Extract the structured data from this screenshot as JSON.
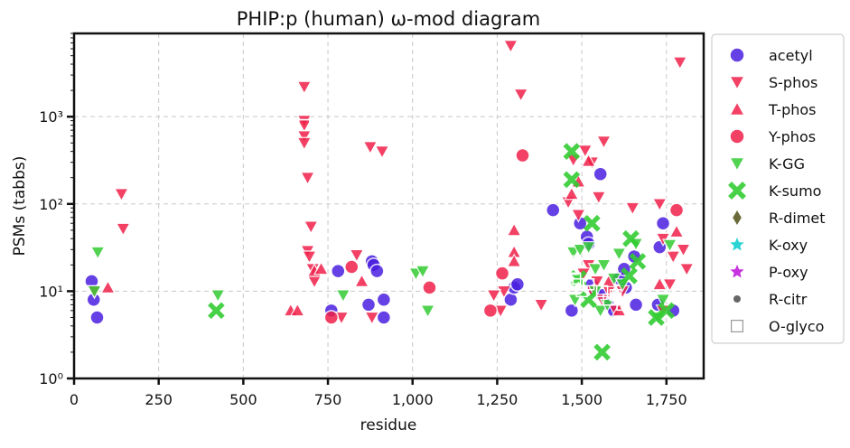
{
  "chart_data": {
    "type": "scatter",
    "title": "PHIP:p (human) ω-mod diagram",
    "xlabel": "residue",
    "ylabel": "PSMs (tabbs)",
    "xlim": [
      0,
      1860
    ],
    "ylim": [
      1,
      9000
    ],
    "y_scale": "log",
    "x_ticks": [
      0,
      250,
      500,
      750,
      1000,
      1250,
      1500,
      1750
    ],
    "x_tick_labels": [
      "0",
      "250",
      "500",
      "750",
      "1,000",
      "1,250",
      "1,500",
      "1,750"
    ],
    "y_ticks": [
      1,
      10,
      100,
      1000
    ],
    "y_tick_labels": [
      "10⁰",
      "10¹",
      "10²",
      "10³"
    ],
    "grid": true,
    "legend_position": "outside-right",
    "series": [
      {
        "name": "acetyl",
        "marker": "circle",
        "color": "#4b1fe0",
        "points": [
          [
            52,
            13
          ],
          [
            58,
            8
          ],
          [
            68,
            5
          ],
          [
            780,
            17
          ],
          [
            760,
            6
          ],
          [
            870,
            7
          ],
          [
            880,
            22
          ],
          [
            885,
            20
          ],
          [
            895,
            17
          ],
          [
            915,
            8
          ],
          [
            915,
            5
          ],
          [
            1290,
            8
          ],
          [
            1300,
            11
          ],
          [
            1310,
            12
          ],
          [
            1415,
            85
          ],
          [
            1470,
            6
          ],
          [
            1495,
            60
          ],
          [
            1515,
            42
          ],
          [
            1520,
            35
          ],
          [
            1530,
            12
          ],
          [
            1540,
            10
          ],
          [
            1555,
            220
          ],
          [
            1560,
            9
          ],
          [
            1580,
            7
          ],
          [
            1595,
            6
          ],
          [
            1610,
            14
          ],
          [
            1625,
            18
          ],
          [
            1630,
            11
          ],
          [
            1655,
            25
          ],
          [
            1660,
            7
          ],
          [
            1740,
            60
          ],
          [
            1730,
            32
          ],
          [
            1725,
            7
          ],
          [
            1770,
            6
          ]
        ]
      },
      {
        "name": "S-phos",
        "marker": "triangle-down",
        "color": "#f0214a",
        "points": [
          [
            140,
            130
          ],
          [
            145,
            52
          ],
          [
            60,
            10
          ],
          [
            680,
            2200
          ],
          [
            690,
            200
          ],
          [
            700,
            55
          ],
          [
            690,
            29
          ],
          [
            695,
            25
          ],
          [
            705,
            18
          ],
          [
            710,
            13
          ],
          [
            680,
            900
          ],
          [
            680,
            800
          ],
          [
            680,
            600
          ],
          [
            680,
            500
          ],
          [
            790,
            5
          ],
          [
            835,
            26
          ],
          [
            875,
            450
          ],
          [
            910,
            400
          ],
          [
            880,
            5
          ],
          [
            1290,
            6500
          ],
          [
            1320,
            1800
          ],
          [
            1270,
            10
          ],
          [
            1260,
            6
          ],
          [
            1240,
            9
          ],
          [
            1380,
            7
          ],
          [
            1460,
            105
          ],
          [
            1475,
            320
          ],
          [
            1490,
            75
          ],
          [
            1510,
            410
          ],
          [
            1530,
            300
          ],
          [
            1550,
            120
          ],
          [
            1565,
            520
          ],
          [
            1520,
            20
          ],
          [
            1505,
            16
          ],
          [
            1530,
            10
          ],
          [
            1545,
            13
          ],
          [
            1560,
            8
          ],
          [
            1580,
            10
          ],
          [
            1600,
            6
          ],
          [
            1620,
            10
          ],
          [
            1650,
            90
          ],
          [
            1730,
            100
          ],
          [
            1740,
            40
          ],
          [
            1790,
            4200
          ],
          [
            1800,
            30
          ],
          [
            1810,
            18
          ],
          [
            1770,
            25
          ],
          [
            1760,
            12
          ],
          [
            1740,
            6
          ]
        ]
      },
      {
        "name": "T-phos",
        "marker": "triangle-up",
        "color": "#f0214a",
        "points": [
          [
            100,
            11
          ],
          [
            640,
            6
          ],
          [
            660,
            6
          ],
          [
            710,
            17
          ],
          [
            730,
            18
          ],
          [
            850,
            13
          ],
          [
            1300,
            50
          ],
          [
            1300,
            28
          ],
          [
            1300,
            22
          ],
          [
            1470,
            130
          ],
          [
            1490,
            180
          ],
          [
            1520,
            310
          ],
          [
            1580,
            13
          ],
          [
            1610,
            6
          ],
          [
            1730,
            12
          ],
          [
            1780,
            48
          ]
        ]
      },
      {
        "name": "Y-phos",
        "marker": "circle",
        "color": "#f0214a",
        "points": [
          [
            820,
            19
          ],
          [
            760,
            5
          ],
          [
            1050,
            11
          ],
          [
            1230,
            6
          ],
          [
            1265,
            16
          ],
          [
            1325,
            360
          ],
          [
            1780,
            85
          ]
        ]
      },
      {
        "name": "K-GG",
        "marker": "triangle-down",
        "color": "#33cc33",
        "points": [
          [
            60,
            10
          ],
          [
            70,
            28
          ],
          [
            425,
            9
          ],
          [
            795,
            9
          ],
          [
            1010,
            16
          ],
          [
            1030,
            17
          ],
          [
            1045,
            6
          ],
          [
            1475,
            28
          ],
          [
            1480,
            8
          ],
          [
            1495,
            30
          ],
          [
            1520,
            32
          ],
          [
            1540,
            18
          ],
          [
            1540,
            10
          ],
          [
            1555,
            6
          ],
          [
            1565,
            20
          ],
          [
            1575,
            7
          ],
          [
            1595,
            14
          ],
          [
            1610,
            27
          ],
          [
            1620,
            12
          ],
          [
            1660,
            35
          ],
          [
            1740,
            8
          ],
          [
            1760,
            34
          ],
          [
            1725,
            5
          ]
        ]
      },
      {
        "name": "K-sumo",
        "marker": "x",
        "color": "#33cc33",
        "points": [
          [
            420,
            6
          ],
          [
            1470,
            400
          ],
          [
            1470,
            190
          ],
          [
            1490,
            14
          ],
          [
            1520,
            8
          ],
          [
            1530,
            60
          ],
          [
            1560,
            2
          ],
          [
            1640,
            15
          ],
          [
            1645,
            40
          ],
          [
            1665,
            22
          ],
          [
            1720,
            5
          ],
          [
            1750,
            6
          ]
        ]
      },
      {
        "name": "R-dimet",
        "marker": "diamond",
        "color": "#6b6b3a",
        "points": []
      },
      {
        "name": "K-oxy",
        "marker": "star",
        "color": "#2ad4d4",
        "points": []
      },
      {
        "name": "P-oxy",
        "marker": "star",
        "color": "#c832e0",
        "points": []
      },
      {
        "name": "R-citr",
        "marker": "dot",
        "color": "#666666",
        "points": []
      },
      {
        "name": "O-glyco",
        "marker": "square-open",
        "color": "#999999",
        "points": [
          [
            640,
            20
          ],
          [
            680,
            800
          ],
          [
            1470,
            22
          ],
          [
            1470,
            18
          ],
          [
            1480,
            14
          ],
          [
            1490,
            12
          ],
          [
            1500,
            10
          ],
          [
            1520,
            12
          ],
          [
            1560,
            10
          ],
          [
            1580,
            8
          ],
          [
            1600,
            9
          ],
          [
            1620,
            7
          ]
        ]
      }
    ]
  }
}
